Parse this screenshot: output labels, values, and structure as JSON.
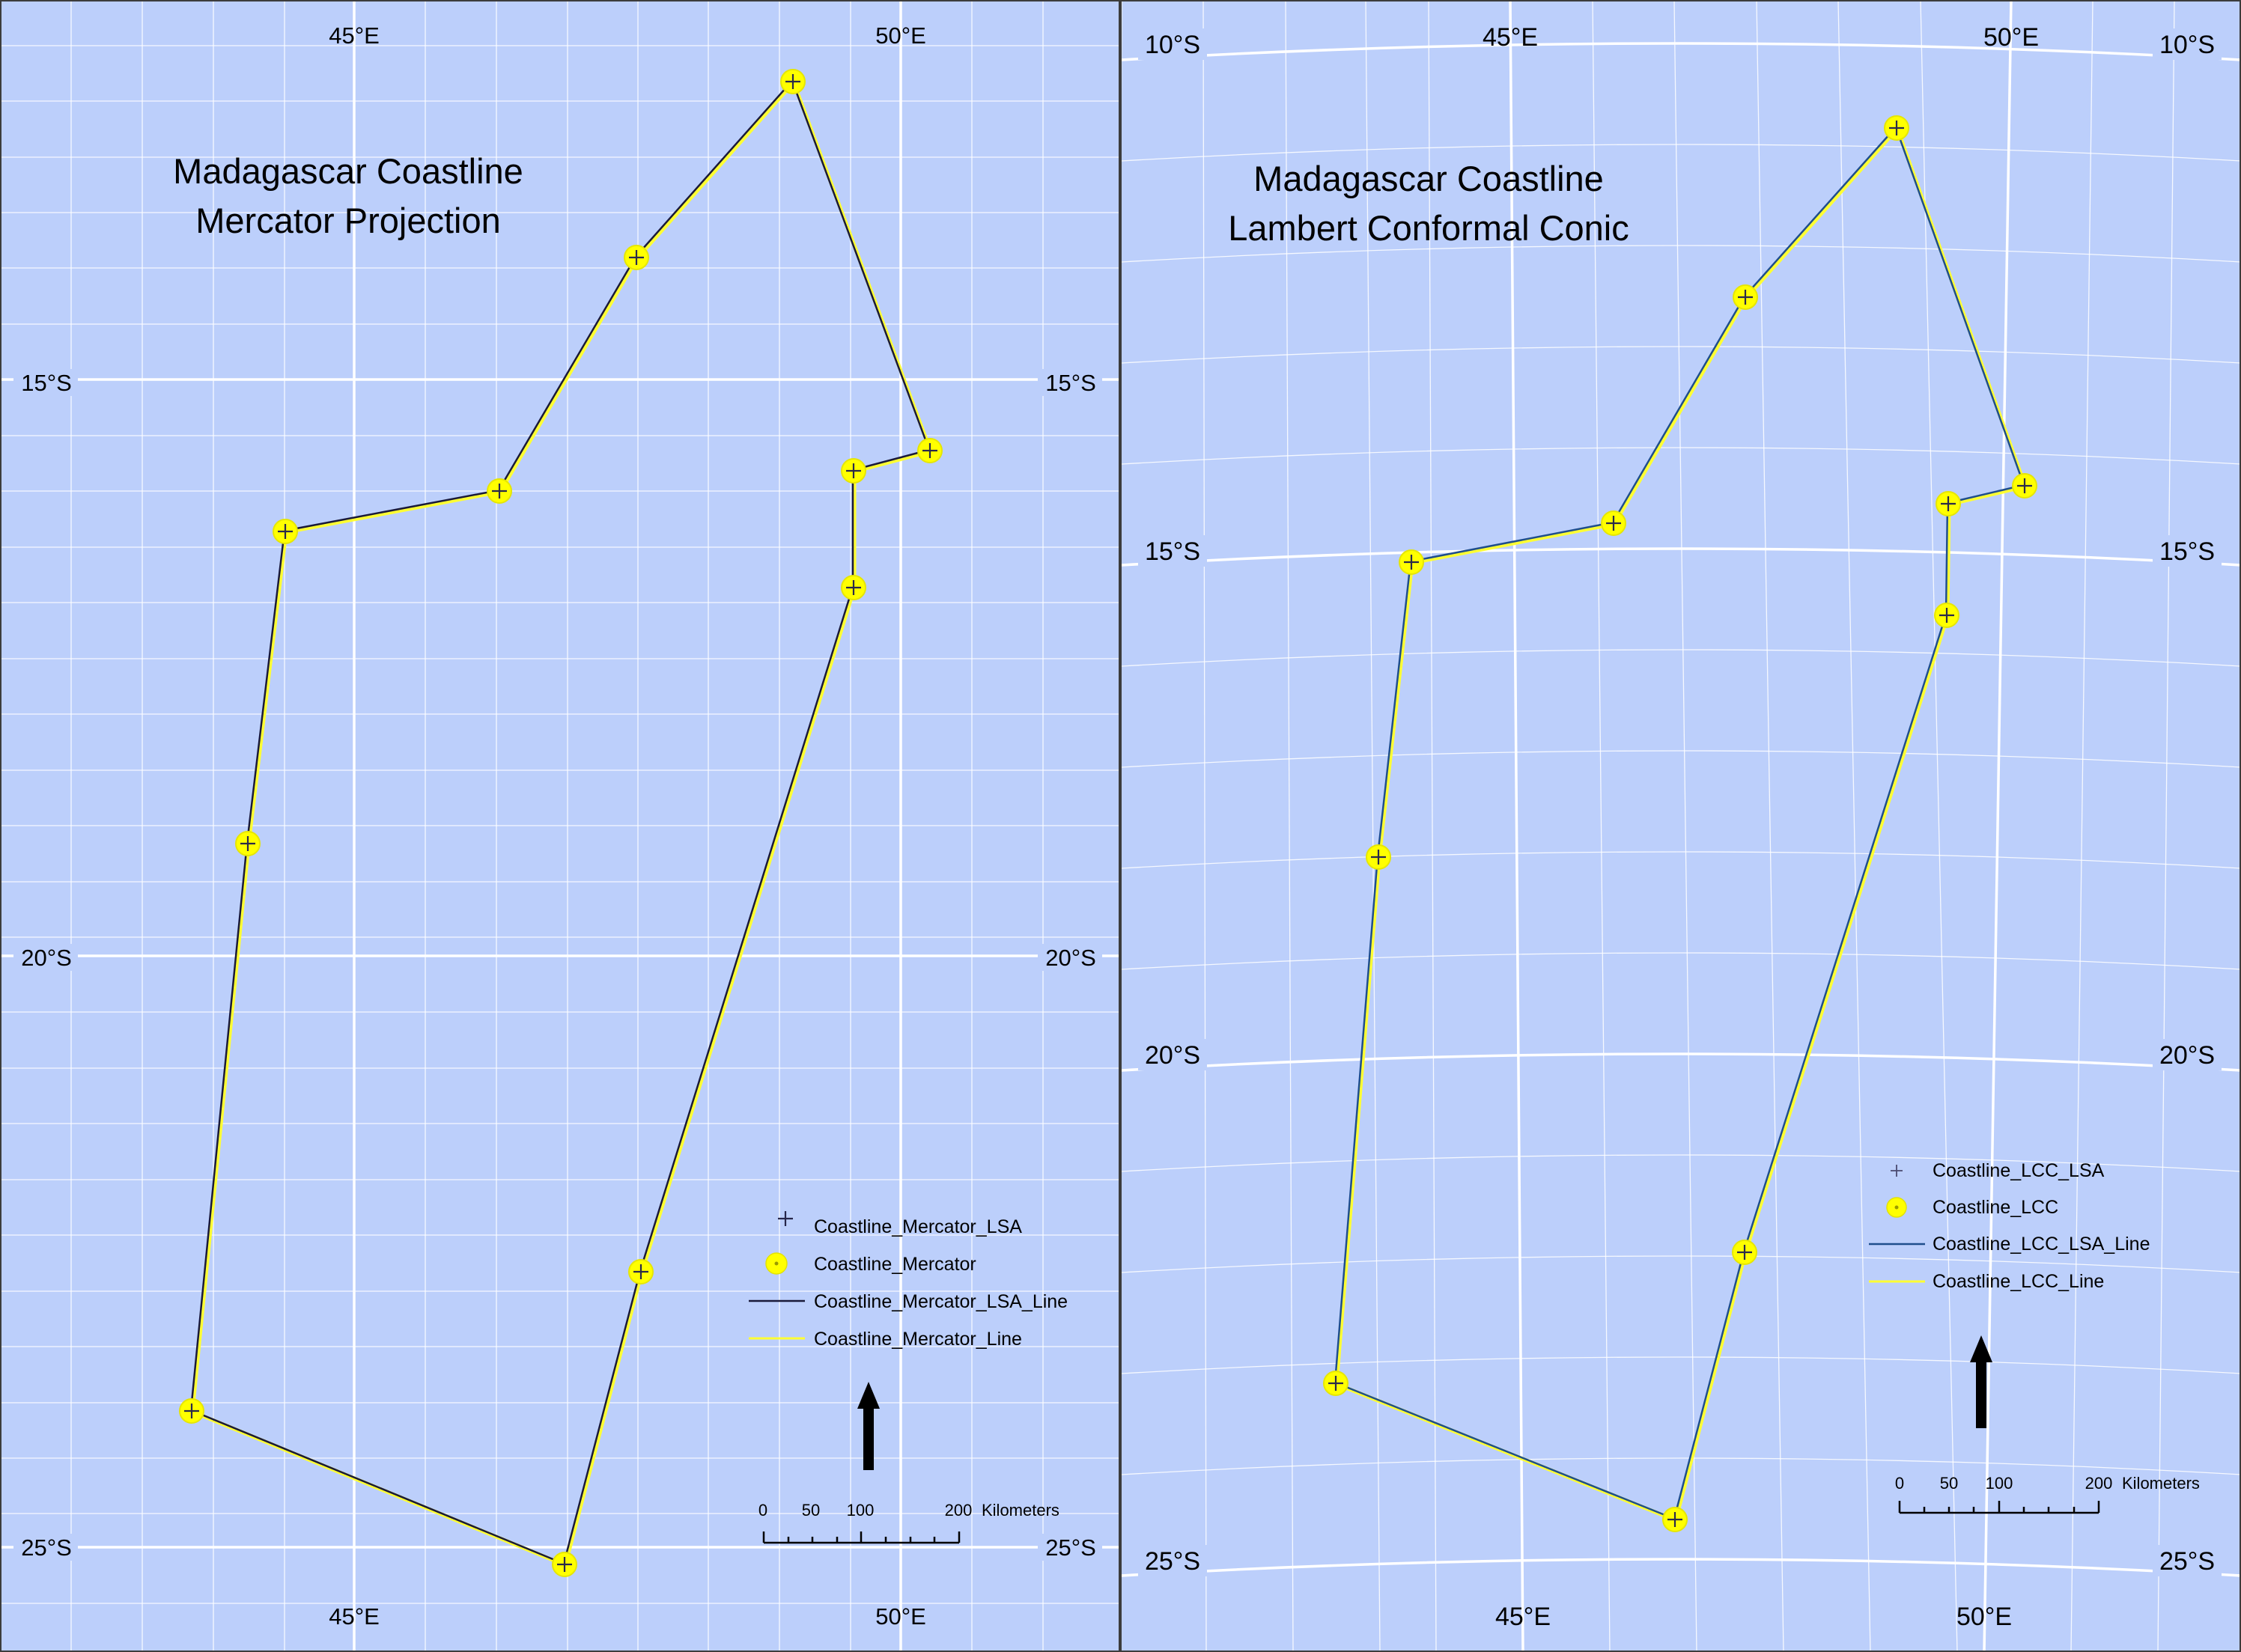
{
  "left_map": {
    "title_line1": "Madagascar Coastline",
    "title_line2": "Mercator Projection",
    "lon_labels": [
      "45°E",
      "50°E"
    ],
    "lat_labels": [
      "15°S",
      "20°S",
      "25°S"
    ],
    "legend": {
      "lsa_points": "Coastline_Mercator_LSA",
      "points": "Coastline_Mercator",
      "lsa_line": "Coastline_Mercator_LSA_Line",
      "line": "Coastline_Mercator_Line"
    },
    "scale_bar": {
      "ticks": [
        "0",
        "50",
        "100",
        "200"
      ],
      "unit": "Kilometers"
    },
    "line_color": "#1a1a3a"
  },
  "right_map": {
    "title_line1": "Madagascar Coastline",
    "title_line2": "Lambert Conformal Conic",
    "lon_labels": [
      "45°E",
      "50°E"
    ],
    "lat_labels": [
      "10°S",
      "15°S",
      "20°S",
      "25°S"
    ],
    "legend": {
      "lsa_points": "Coastline_LCC_LSA",
      "points": "Coastline_LCC",
      "lsa_line": "Coastline_LCC_LSA_Line",
      "line": "Coastline_LCC_Line"
    },
    "scale_bar": {
      "ticks": [
        "0",
        "50",
        "100",
        "200"
      ],
      "unit": "Kilometers"
    },
    "line_color": "#1f4e8c"
  },
  "colors": {
    "ocean": "#bccffb",
    "point_fill": "#ffff00",
    "yellow_line": "#ffff33",
    "grid": "#ffffff"
  }
}
